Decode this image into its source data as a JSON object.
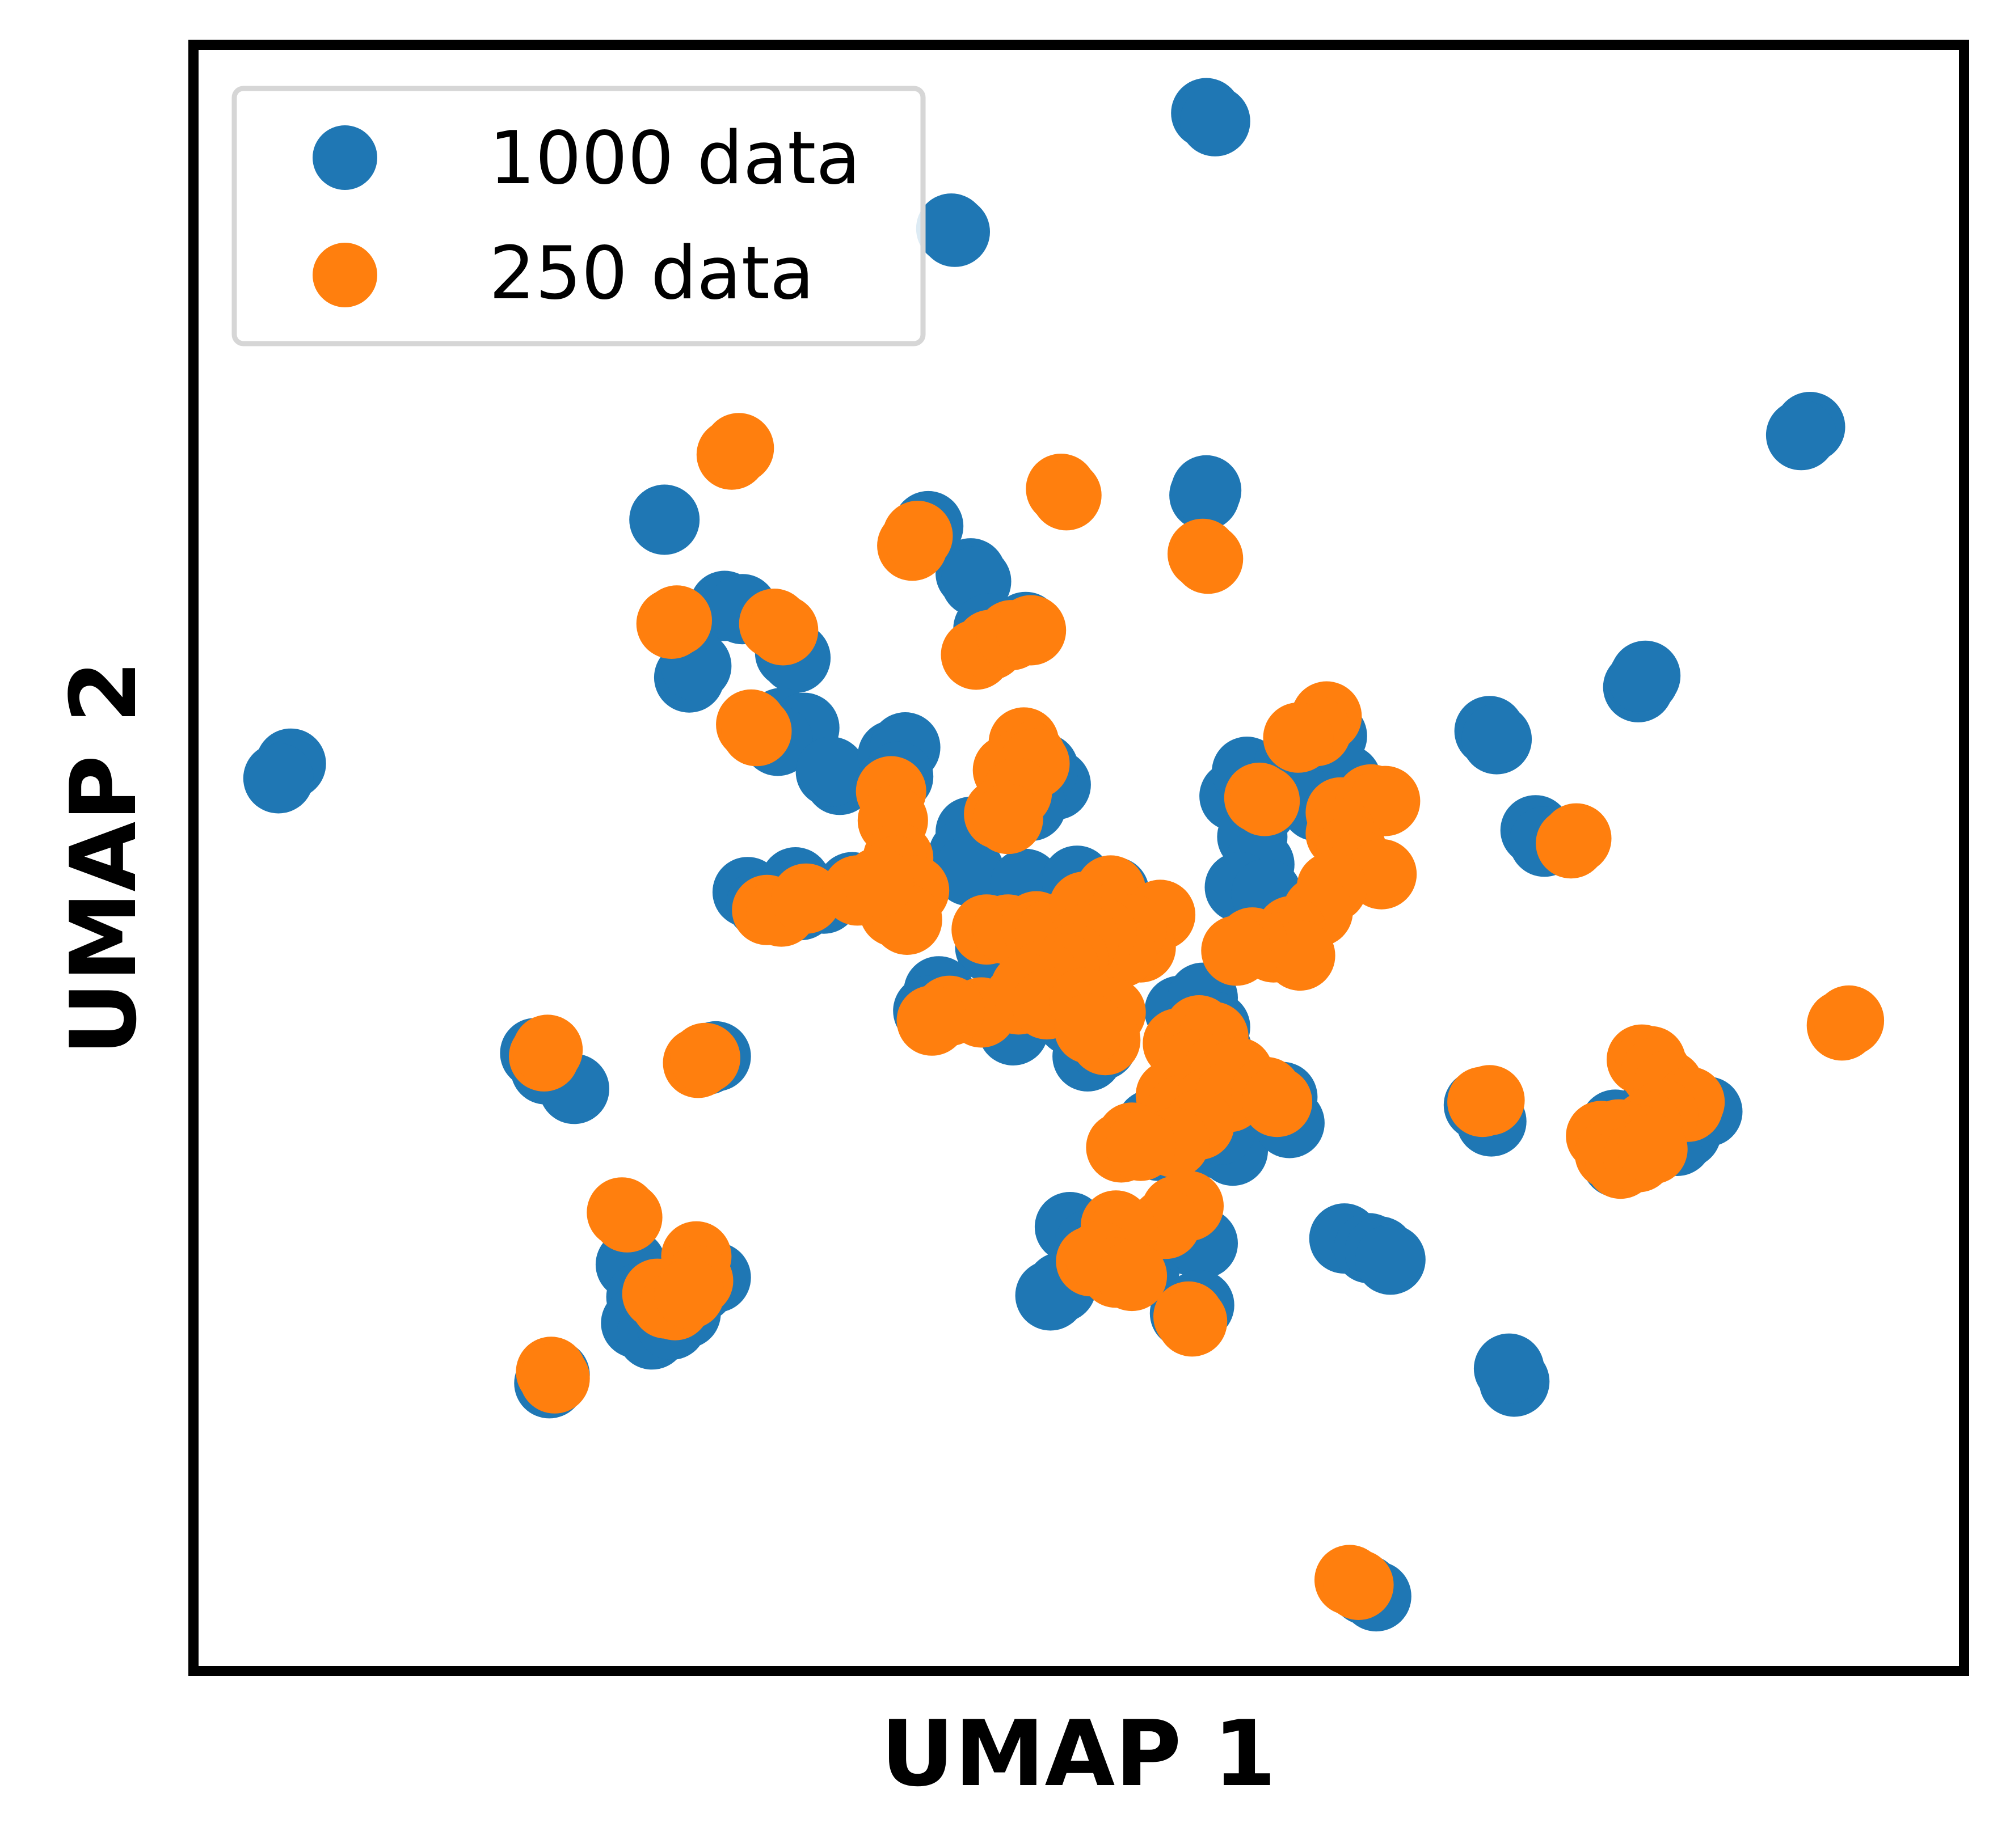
{
  "chart_data": {
    "type": "scatter",
    "title": "",
    "xlabel": "UMAP 1",
    "ylabel": "UMAP 2",
    "xlim": [
      0,
      100
    ],
    "ylim": [
      0,
      100
    ],
    "ticks_shown": false,
    "grid": false,
    "legend_position": "top-left",
    "series": [
      {
        "name": "1000 data",
        "color": "#1f77b4",
        "points": [
          [
            57.2,
            95.8
          ],
          [
            57.7,
            95.3
          ],
          [
            43.0,
            88.5
          ],
          [
            42.8,
            88.7
          ],
          [
            91.3,
            76.5
          ],
          [
            90.8,
            76.0
          ],
          [
            57.1,
            72.3
          ],
          [
            57.2,
            72.6
          ],
          [
            41.5,
            70.4
          ],
          [
            43.9,
            67.5
          ],
          [
            44.2,
            67.0
          ],
          [
            26.6,
            70.8
          ],
          [
            30.0,
            65.5
          ],
          [
            31.0,
            65.3
          ],
          [
            28.0,
            61.1
          ],
          [
            28.4,
            61.8
          ],
          [
            33.7,
            62.6
          ],
          [
            34.0,
            62.3
          ],
          [
            44.9,
            64.1
          ],
          [
            45.5,
            63.7
          ],
          [
            46.6,
            63.9
          ],
          [
            47.0,
            64.2
          ],
          [
            82.0,
            61.2
          ],
          [
            81.6,
            60.5
          ],
          [
            81.9,
            61.0
          ],
          [
            73.2,
            57.8
          ],
          [
            73.6,
            57.3
          ],
          [
            5.5,
            55.8
          ],
          [
            4.8,
            54.9
          ],
          [
            33.2,
            58.3
          ],
          [
            34.5,
            58.0
          ],
          [
            33.0,
            57.2
          ],
          [
            36.5,
            54.8
          ],
          [
            36.0,
            55.3
          ],
          [
            39.5,
            56.3
          ],
          [
            40.2,
            56.8
          ],
          [
            39.8,
            55.0
          ],
          [
            48.7,
            54.5
          ],
          [
            48.0,
            55.5
          ],
          [
            47.3,
            53.2
          ],
          [
            43.9,
            51.6
          ],
          [
            43.5,
            50.2
          ],
          [
            43.8,
            49.2
          ],
          [
            58.8,
            53.8
          ],
          [
            59.5,
            55.3
          ],
          [
            60.3,
            53.0
          ],
          [
            61.9,
            55.8
          ],
          [
            63.9,
            58.5
          ],
          [
            64.3,
            57.5
          ],
          [
            65.1,
            54.8
          ],
          [
            63.4,
            53.2
          ],
          [
            59.8,
            51.3
          ],
          [
            60.2,
            49.6
          ],
          [
            59.1,
            48.2
          ],
          [
            60.6,
            47.8
          ],
          [
            75.8,
            51.7
          ],
          [
            76.3,
            51.0
          ],
          [
            31.3,
            47.9
          ],
          [
            32.1,
            47.2
          ],
          [
            34.0,
            48.5
          ],
          [
            34.3,
            47.1
          ],
          [
            35.6,
            47.5
          ],
          [
            37.2,
            48.2
          ],
          [
            47.0,
            48.4
          ],
          [
            49.9,
            48.6
          ],
          [
            52.0,
            47.9
          ],
          [
            52.6,
            46.3
          ],
          [
            45.0,
            44.5
          ],
          [
            46.7,
            43.8
          ],
          [
            47.9,
            43.5
          ],
          [
            49.5,
            43.0
          ],
          [
            51.2,
            43.0
          ],
          [
            42.1,
            41.8
          ],
          [
            41.5,
            40.6
          ],
          [
            46.1,
            40.3
          ],
          [
            46.3,
            39.4
          ],
          [
            49.6,
            40.0
          ],
          [
            50.3,
            39.3
          ],
          [
            50.5,
            37.8
          ],
          [
            51.3,
            38.5
          ],
          [
            55.7,
            40.6
          ],
          [
            57.0,
            41.4
          ],
          [
            57.7,
            39.6
          ],
          [
            57.8,
            38.2
          ],
          [
            58.5,
            36.1
          ],
          [
            55.3,
            34.5
          ],
          [
            54.1,
            33.6
          ],
          [
            54.5,
            32.3
          ],
          [
            55.9,
            32.0
          ],
          [
            57.5,
            32.5
          ],
          [
            58.7,
            32.0
          ],
          [
            58.0,
            33.3
          ],
          [
            61.5,
            35.3
          ],
          [
            61.9,
            33.7
          ],
          [
            83.3,
            35.2
          ],
          [
            82.2,
            34.2
          ],
          [
            80.3,
            33.6
          ],
          [
            80.5,
            32.5
          ],
          [
            83.8,
            32.6
          ],
          [
            84.3,
            33.1
          ],
          [
            85.5,
            34.4
          ],
          [
            81.8,
            31.8
          ],
          [
            80.4,
            31.3
          ],
          [
            19.3,
            38.0
          ],
          [
            19.9,
            37.0
          ],
          [
            21.5,
            35.8
          ],
          [
            29.0,
            37.6
          ],
          [
            29.5,
            37.8
          ],
          [
            72.6,
            34.8
          ],
          [
            73.3,
            33.8
          ],
          [
            49.5,
            27.3
          ],
          [
            50.6,
            26.2
          ],
          [
            53.0,
            25.9
          ],
          [
            53.7,
            24.6
          ],
          [
            55.3,
            26.7
          ],
          [
            56.3,
            26.5
          ],
          [
            57.0,
            26.3
          ],
          [
            65.0,
            26.6
          ],
          [
            66.4,
            26.0
          ],
          [
            67.0,
            25.8
          ],
          [
            67.6,
            25.3
          ],
          [
            49.0,
            23.6
          ],
          [
            48.4,
            23.1
          ],
          [
            24.7,
            25.0
          ],
          [
            25.3,
            23.0
          ],
          [
            25.0,
            21.4
          ],
          [
            25.1,
            21.5
          ],
          [
            25.9,
            20.7
          ],
          [
            27.0,
            21.3
          ],
          [
            27.8,
            22.0
          ],
          [
            28.6,
            23.6
          ],
          [
            29.5,
            24.2
          ],
          [
            56.8,
            22.5
          ],
          [
            56.0,
            22.0
          ],
          [
            74.6,
            17.8
          ],
          [
            74.3,
            18.6
          ],
          [
            20.4,
            18.2
          ],
          [
            20.1,
            17.7
          ],
          [
            66.2,
            5.0
          ],
          [
            66.8,
            4.6
          ]
        ]
      },
      {
        "name": "250 data",
        "color": "#ff7f0e",
        "points": [
          [
            30.4,
            74.8
          ],
          [
            30.8,
            75.2
          ],
          [
            49.0,
            72.7
          ],
          [
            49.3,
            72.3
          ],
          [
            40.6,
            69.2
          ],
          [
            40.9,
            69.8
          ],
          [
            57.0,
            68.7
          ],
          [
            57.3,
            68.4
          ],
          [
            27.0,
            64.4
          ],
          [
            27.3,
            64.6
          ],
          [
            32.8,
            64.4
          ],
          [
            33.3,
            64.0
          ],
          [
            44.2,
            62.5
          ],
          [
            45.0,
            63.1
          ],
          [
            46.2,
            63.7
          ],
          [
            47.3,
            64.0
          ],
          [
            31.5,
            58.2
          ],
          [
            31.8,
            57.8
          ],
          [
            46.9,
            57.1
          ],
          [
            47.3,
            56.2
          ],
          [
            46.0,
            55.4
          ],
          [
            47.5,
            55.8
          ],
          [
            46.5,
            54.0
          ],
          [
            45.5,
            52.7
          ],
          [
            46.0,
            52.4
          ],
          [
            64.0,
            58.7
          ],
          [
            63.4,
            57.8
          ],
          [
            62.4,
            57.4
          ],
          [
            60.2,
            53.7
          ],
          [
            60.5,
            53.5
          ],
          [
            64.8,
            52.8
          ],
          [
            66.5,
            53.6
          ],
          [
            67.3,
            53.5
          ],
          [
            64.8,
            51.5
          ],
          [
            65.4,
            50.5
          ],
          [
            66.0,
            49.5
          ],
          [
            67.1,
            49.0
          ],
          [
            64.3,
            48.2
          ],
          [
            63.5,
            46.7
          ],
          [
            62.0,
            45.5
          ],
          [
            61.0,
            44.5
          ],
          [
            62.5,
            44.0
          ],
          [
            59.8,
            44.8
          ],
          [
            58.9,
            44.3
          ],
          [
            39.4,
            54.1
          ],
          [
            39.5,
            52.3
          ],
          [
            39.8,
            50.0
          ],
          [
            39.7,
            49.2
          ],
          [
            40.7,
            48.0
          ],
          [
            39.6,
            46.7
          ],
          [
            40.3,
            46.2
          ],
          [
            78.1,
            51.2
          ],
          [
            77.8,
            50.9
          ],
          [
            32.4,
            46.8
          ],
          [
            33.2,
            46.7
          ],
          [
            34.6,
            47.5
          ],
          [
            37.5,
            48.0
          ],
          [
            38.7,
            48.5
          ],
          [
            44.8,
            45.6
          ],
          [
            46.0,
            45.6
          ],
          [
            47.6,
            45.8
          ],
          [
            48.4,
            45.3
          ],
          [
            50.3,
            47.0
          ],
          [
            51.8,
            48.0
          ],
          [
            52.6,
            46.7
          ],
          [
            54.6,
            46.5
          ],
          [
            53.5,
            44.5
          ],
          [
            53.0,
            45.6
          ],
          [
            52.4,
            44.2
          ],
          [
            51.3,
            45.4
          ],
          [
            50.3,
            45.0
          ],
          [
            49.7,
            43.8
          ],
          [
            49.2,
            43.2
          ],
          [
            48.0,
            42.8
          ],
          [
            46.6,
            41.3
          ],
          [
            44.5,
            40.5
          ],
          [
            42.7,
            40.6
          ],
          [
            41.7,
            40.0
          ],
          [
            47.0,
            42.0
          ],
          [
            48.2,
            41.0
          ],
          [
            50.3,
            41.1
          ],
          [
            51.8,
            40.5
          ],
          [
            51.5,
            38.8
          ],
          [
            50.6,
            39.5
          ],
          [
            55.6,
            38.6
          ],
          [
            56.8,
            39.4
          ],
          [
            57.6,
            39.0
          ],
          [
            56.5,
            37.3
          ],
          [
            57.9,
            37.0
          ],
          [
            59.0,
            36.8
          ],
          [
            56.3,
            35.4
          ],
          [
            55.2,
            35.4
          ],
          [
            55.8,
            34.5
          ],
          [
            57.4,
            35.0
          ],
          [
            58.5,
            35.3
          ],
          [
            60.6,
            35.6
          ],
          [
            61.2,
            35.0
          ],
          [
            56.8,
            33.6
          ],
          [
            55.4,
            32.5
          ],
          [
            53.0,
            32.8
          ],
          [
            52.4,
            32.2
          ],
          [
            53.5,
            32.3
          ],
          [
            93.1,
            39.7
          ],
          [
            93.5,
            40.0
          ],
          [
            81.8,
            37.6
          ],
          [
            82.3,
            37.5
          ],
          [
            82.6,
            36.8
          ],
          [
            83.3,
            36.0
          ],
          [
            84.5,
            35.0
          ],
          [
            84.4,
            34.7
          ],
          [
            83.0,
            34.2
          ],
          [
            82.1,
            33.5
          ],
          [
            81.5,
            32.7
          ],
          [
            80.5,
            33.0
          ],
          [
            79.5,
            32.9
          ],
          [
            80.0,
            31.8
          ],
          [
            80.6,
            31.2
          ],
          [
            81.6,
            31.6
          ],
          [
            82.4,
            32.1
          ],
          [
            72.8,
            35.0
          ],
          [
            73.2,
            35.1
          ],
          [
            19.8,
            37.8
          ],
          [
            20.0,
            38.2
          ],
          [
            28.5,
            37.4
          ],
          [
            28.9,
            37.7
          ],
          [
            55.5,
            28.3
          ],
          [
            56.2,
            28.6
          ],
          [
            54.9,
            27.5
          ],
          [
            52.1,
            27.4
          ],
          [
            52.5,
            26.9
          ],
          [
            50.7,
            25.2
          ],
          [
            51.2,
            25.5
          ],
          [
            52.1,
            24.5
          ],
          [
            53.0,
            24.3
          ],
          [
            24.2,
            28.2
          ],
          [
            24.5,
            27.9
          ],
          [
            28.4,
            25.5
          ],
          [
            28.5,
            24.0
          ],
          [
            27.5,
            23.0
          ],
          [
            26.7,
            22.6
          ],
          [
            26.2,
            23.2
          ],
          [
            27.2,
            22.5
          ],
          [
            28.0,
            23.2
          ],
          [
            56.2,
            21.8
          ],
          [
            56.4,
            21.5
          ],
          [
            20.2,
            18.4
          ],
          [
            20.4,
            18.0
          ],
          [
            65.3,
            5.6
          ],
          [
            65.8,
            5.3
          ]
        ]
      }
    ]
  }
}
